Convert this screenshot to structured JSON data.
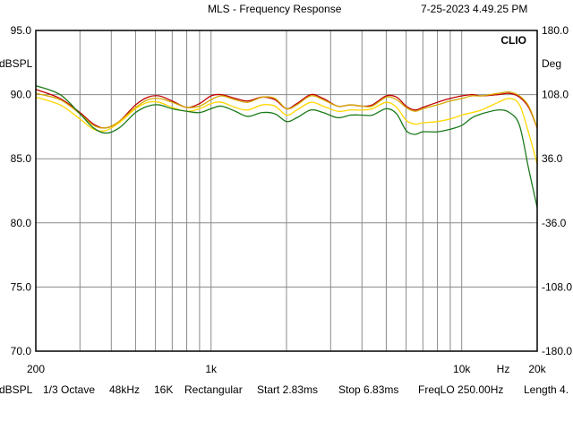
{
  "header": {
    "title": "MLS - Frequency Response",
    "timestamp": "7-25-2023 4.49.25 PM"
  },
  "chart_data": {
    "type": "line",
    "title": "MLS - Frequency Response",
    "brand": "CLIO",
    "x_scale": "log",
    "xlim": [
      200,
      20000
    ],
    "x_tick_labels": [
      {
        "value": 200,
        "label": "200"
      },
      {
        "value": 1000,
        "label": "1k"
      },
      {
        "value": 10000,
        "label": "10k"
      },
      {
        "value": 20000,
        "label": "20k"
      }
    ],
    "x_unit": "Hz",
    "left_axis": {
      "unit": "dBSPL",
      "ylim": [
        70,
        95
      ],
      "ticks": [
        "95.0",
        "90.0",
        "85.0",
        "80.0",
        "75.0",
        "70.0"
      ]
    },
    "right_axis": {
      "unit": "Deg",
      "ylim": [
        -180,
        180
      ],
      "ticks": [
        "180.0",
        "108.0",
        "36.0",
        "-36.0",
        "-108.0",
        "-180.0"
      ]
    },
    "grid": true,
    "series": [
      {
        "color": "#c00000",
        "points": [
          [
            200,
            90.4
          ],
          [
            250,
            89.7
          ],
          [
            300,
            88.6
          ],
          [
            340,
            87.7
          ],
          [
            380,
            87.4
          ],
          [
            430,
            87.9
          ],
          [
            500,
            89.2
          ],
          [
            560,
            89.8
          ],
          [
            620,
            89.9
          ],
          [
            700,
            89.5
          ],
          [
            800,
            89.0
          ],
          [
            900,
            89.3
          ],
          [
            1000,
            89.9
          ],
          [
            1100,
            90.0
          ],
          [
            1250,
            89.7
          ],
          [
            1400,
            89.5
          ],
          [
            1600,
            89.8
          ],
          [
            1800,
            89.6
          ],
          [
            2000,
            88.9
          ],
          [
            2200,
            89.3
          ],
          [
            2500,
            90.0
          ],
          [
            2800,
            89.7
          ],
          [
            3200,
            89.1
          ],
          [
            3600,
            89.2
          ],
          [
            4000,
            89.1
          ],
          [
            4400,
            89.2
          ],
          [
            5000,
            89.9
          ],
          [
            5500,
            89.8
          ],
          [
            6000,
            89.1
          ],
          [
            6500,
            88.8
          ],
          [
            7000,
            89.0
          ],
          [
            8000,
            89.4
          ],
          [
            9000,
            89.7
          ],
          [
            10000,
            89.9
          ],
          [
            11000,
            90.0
          ],
          [
            12000,
            89.9
          ],
          [
            14000,
            90.0
          ],
          [
            15500,
            90.1
          ],
          [
            17000,
            89.8
          ],
          [
            18500,
            89.0
          ],
          [
            20000,
            87.4
          ]
        ]
      },
      {
        "color": "#d4a800",
        "points": [
          [
            200,
            90.1
          ],
          [
            250,
            89.6
          ],
          [
            300,
            88.5
          ],
          [
            340,
            87.6
          ],
          [
            380,
            87.4
          ],
          [
            430,
            87.9
          ],
          [
            500,
            89.0
          ],
          [
            560,
            89.6
          ],
          [
            620,
            89.7
          ],
          [
            700,
            89.4
          ],
          [
            800,
            89.0
          ],
          [
            900,
            89.1
          ],
          [
            1000,
            89.6
          ],
          [
            1100,
            89.9
          ],
          [
            1250,
            89.6
          ],
          [
            1400,
            89.4
          ],
          [
            1600,
            89.8
          ],
          [
            1800,
            89.7
          ],
          [
            2000,
            88.9
          ],
          [
            2200,
            89.2
          ],
          [
            2500,
            89.9
          ],
          [
            2800,
            89.6
          ],
          [
            3200,
            89.1
          ],
          [
            3600,
            89.2
          ],
          [
            4000,
            89.1
          ],
          [
            4400,
            89.1
          ],
          [
            5000,
            89.8
          ],
          [
            5500,
            89.6
          ],
          [
            6000,
            89.0
          ],
          [
            6500,
            88.7
          ],
          [
            7000,
            88.9
          ],
          [
            8000,
            89.2
          ],
          [
            9000,
            89.5
          ],
          [
            10000,
            89.7
          ],
          [
            11000,
            89.9
          ],
          [
            12000,
            89.9
          ],
          [
            14000,
            90.1
          ],
          [
            15500,
            90.2
          ],
          [
            17000,
            89.9
          ],
          [
            18500,
            89.1
          ],
          [
            20000,
            87.4
          ]
        ]
      },
      {
        "color": "#ffd700",
        "points": [
          [
            200,
            89.8
          ],
          [
            250,
            89.2
          ],
          [
            300,
            88.1
          ],
          [
            340,
            87.3
          ],
          [
            380,
            87.2
          ],
          [
            430,
            87.8
          ],
          [
            500,
            88.9
          ],
          [
            560,
            89.4
          ],
          [
            620,
            89.4
          ],
          [
            700,
            89.0
          ],
          [
            800,
            88.7
          ],
          [
            900,
            88.9
          ],
          [
            1000,
            89.3
          ],
          [
            1100,
            89.4
          ],
          [
            1250,
            89.0
          ],
          [
            1400,
            88.8
          ],
          [
            1600,
            89.2
          ],
          [
            1800,
            89.1
          ],
          [
            2000,
            88.4
          ],
          [
            2200,
            88.8
          ],
          [
            2500,
            89.4
          ],
          [
            2800,
            89.1
          ],
          [
            3200,
            88.7
          ],
          [
            3600,
            88.8
          ],
          [
            4000,
            88.8
          ],
          [
            4400,
            88.9
          ],
          [
            5000,
            89.4
          ],
          [
            5500,
            89.0
          ],
          [
            6000,
            88.0
          ],
          [
            6500,
            87.7
          ],
          [
            7000,
            87.8
          ],
          [
            8000,
            87.9
          ],
          [
            9000,
            88.1
          ],
          [
            10000,
            88.4
          ],
          [
            11000,
            88.6
          ],
          [
            12000,
            88.8
          ],
          [
            14000,
            89.4
          ],
          [
            15500,
            89.7
          ],
          [
            17000,
            89.2
          ],
          [
            18500,
            87.0
          ],
          [
            20000,
            84.6
          ]
        ]
      },
      {
        "color": "#1a7a1a",
        "points": [
          [
            200,
            90.7
          ],
          [
            250,
            90.0
          ],
          [
            300,
            88.5
          ],
          [
            340,
            87.4
          ],
          [
            380,
            87.0
          ],
          [
            430,
            87.4
          ],
          [
            500,
            88.6
          ],
          [
            560,
            89.1
          ],
          [
            620,
            89.2
          ],
          [
            700,
            88.9
          ],
          [
            800,
            88.7
          ],
          [
            900,
            88.6
          ],
          [
            1000,
            88.9
          ],
          [
            1100,
            89.1
          ],
          [
            1250,
            88.7
          ],
          [
            1400,
            88.3
          ],
          [
            1600,
            88.6
          ],
          [
            1800,
            88.5
          ],
          [
            2000,
            87.9
          ],
          [
            2200,
            88.2
          ],
          [
            2500,
            88.8
          ],
          [
            2800,
            88.6
          ],
          [
            3200,
            88.2
          ],
          [
            3600,
            88.4
          ],
          [
            4000,
            88.4
          ],
          [
            4400,
            88.4
          ],
          [
            5000,
            88.9
          ],
          [
            5500,
            88.5
          ],
          [
            6000,
            87.2
          ],
          [
            6500,
            86.9
          ],
          [
            7000,
            87.1
          ],
          [
            8000,
            87.1
          ],
          [
            9000,
            87.3
          ],
          [
            10000,
            87.6
          ],
          [
            11000,
            88.2
          ],
          [
            12000,
            88.5
          ],
          [
            14000,
            88.8
          ],
          [
            15500,
            88.6
          ],
          [
            17000,
            87.6
          ],
          [
            18500,
            84.2
          ],
          [
            20000,
            81.2
          ]
        ]
      }
    ]
  },
  "footer": {
    "unit": "dBSPL",
    "smoothing": "1/3 Octave",
    "sample_rate": "48kHz",
    "size": "16K",
    "window": "Rectangular",
    "start": "Start 2.83ms",
    "stop": "Stop 6.83ms",
    "freq_lo": "FreqLO 250.00Hz",
    "length": "Length 4."
  }
}
